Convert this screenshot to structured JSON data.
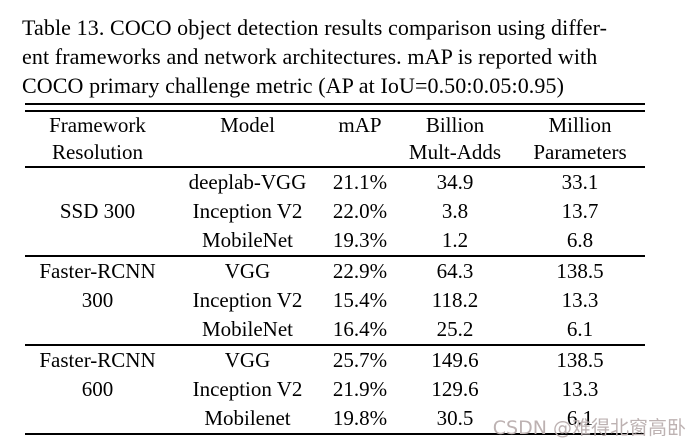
{
  "caption": {
    "lines": [
      "Table 13. COCO object detection results comparison using differ-",
      "ent frameworks and network architectures. mAP is reported with",
      "COCO primary challenge metric (AP at IoU=0.50:0.05:0.95)"
    ]
  },
  "table": {
    "columns": [
      {
        "line1": "Framework",
        "line2": "Resolution"
      },
      {
        "line1": "Model",
        "line2": ""
      },
      {
        "line1": "mAP",
        "line2": ""
      },
      {
        "line1": "Billion",
        "line2": "Mult-Adds"
      },
      {
        "line1": "Million",
        "line2": "Parameters"
      }
    ],
    "groups": [
      {
        "framework_rows": [
          "",
          "SSD 300",
          ""
        ],
        "rows": [
          {
            "model": "deeplab-VGG",
            "map": "21.1%",
            "mult_adds": "34.9",
            "parameters": "33.1"
          },
          {
            "model": "Inception V2",
            "map": "22.0%",
            "mult_adds": "3.8",
            "parameters": "13.7"
          },
          {
            "model": "MobileNet",
            "map": "19.3%",
            "mult_adds": "1.2",
            "parameters": "6.8"
          }
        ]
      },
      {
        "framework_rows": [
          "Faster-RCNN",
          "300",
          ""
        ],
        "rows": [
          {
            "model": "VGG",
            "map": "22.9%",
            "mult_adds": "64.3",
            "parameters": "138.5"
          },
          {
            "model": "Inception V2",
            "map": "15.4%",
            "mult_adds": "118.2",
            "parameters": "13.3"
          },
          {
            "model": "MobileNet",
            "map": "16.4%",
            "mult_adds": "25.2",
            "parameters": "6.1"
          }
        ]
      },
      {
        "framework_rows": [
          "Faster-RCNN",
          "600",
          ""
        ],
        "rows": [
          {
            "model": "VGG",
            "map": "25.7%",
            "mult_adds": "149.6",
            "parameters": "138.5"
          },
          {
            "model": "Inception V2",
            "map": "21.9%",
            "mult_adds": "129.6",
            "parameters": "13.3"
          },
          {
            "model": "Mobilenet",
            "map": "19.8%",
            "mult_adds": "30.5",
            "parameters": "6.1"
          }
        ]
      }
    ]
  },
  "watermark": {
    "text": "CSDN @难得北窗高卧",
    "color": "#bdb2b2"
  },
  "colors": {
    "background": "#ffffff",
    "text": "#000000",
    "rule": "#000000",
    "watermark": "#bdb2b2"
  }
}
